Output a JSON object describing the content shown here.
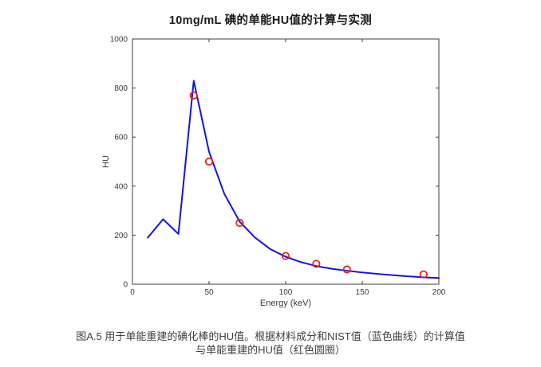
{
  "page": {
    "title": "10mg/mL 碘的单能HU值的计算与实测",
    "caption_line1": "图A.5  用于单能重建的碘化棒的HU值。根据材料成分和NIST值（蓝色曲线）的计算值",
    "caption_line2": "与单能重建的HU值（红色圆圈）"
  },
  "chart_data": {
    "type": "line",
    "title": "10mg/mL 碘的单能HU值的计算与实测",
    "xlabel": "Energy (keV)",
    "ylabel": "HU",
    "xlim": [
      0,
      200
    ],
    "ylim": [
      0,
      1000
    ],
    "x_ticks": [
      0,
      50,
      100,
      150,
      200
    ],
    "y_ticks": [
      0,
      200,
      400,
      600,
      800,
      1000
    ],
    "grid": false,
    "box": true,
    "legend": "none",
    "colors": {
      "curve": "#1414dc",
      "points": "#e62419",
      "axis": "#3d3d3d",
      "tick_text": "#3a3a3a"
    },
    "series": [
      {
        "name": "计算值（NIST，蓝色曲线）",
        "type": "line",
        "x": [
          10,
          20,
          30,
          40,
          50,
          60,
          70,
          80,
          90,
          100,
          110,
          120,
          130,
          140,
          150,
          160,
          170,
          180,
          190,
          200
        ],
        "y": [
          190,
          265,
          205,
          830,
          540,
          368,
          255,
          190,
          143,
          112,
          90,
          74,
          63,
          55,
          48,
          42,
          37,
          32,
          28,
          25
        ]
      },
      {
        "name": "实测值（单能重建，红色圆圈）",
        "type": "scatter",
        "x": [
          40,
          50,
          70,
          100,
          120,
          140,
          190
        ],
        "y": [
          770,
          500,
          250,
          115,
          83,
          60,
          40
        ]
      }
    ]
  }
}
